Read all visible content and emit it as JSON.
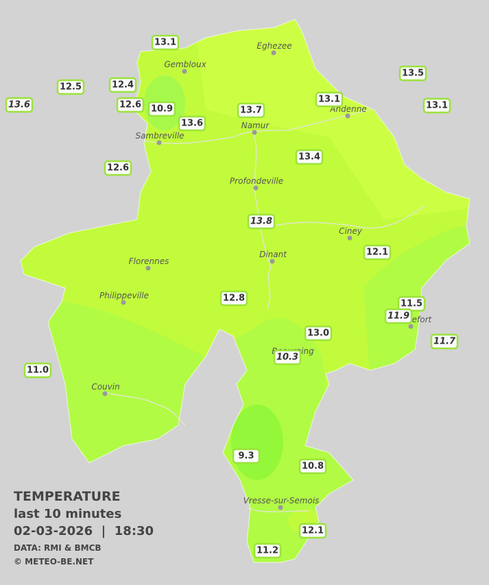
{
  "map": {
    "cities": [
      "Gembloux",
      "Eghezee",
      "Andenne",
      "Namur",
      "Sambreville",
      "Profondeville",
      "Ciney",
      "Dinant",
      "Florennes",
      "Philippeville",
      "Rochefort",
      "Beauraing",
      "Couvin",
      "Vresse-sur-Semois"
    ],
    "stations": [
      "13.1",
      "12.5",
      "12.4",
      "13.6",
      "12.6",
      "10.9",
      "13.6",
      "13.7",
      "13.1",
      "13.5",
      "13.1",
      "12.6",
      "13.4",
      "13.8",
      "12.1",
      "12.8",
      "11.5",
      "11.9",
      "13.0",
      "10.3",
      "11.7",
      "11.0",
      "9.3",
      "10.8",
      "12.1",
      "11.2"
    ]
  },
  "legend": {
    "title": "TEMPERATURE",
    "period": "last 10 minutes",
    "datetime": "02-03-2026  |  18:30",
    "source": "DATA: RMI & BMCB",
    "copyright": "© METEO-BE.NET"
  }
}
